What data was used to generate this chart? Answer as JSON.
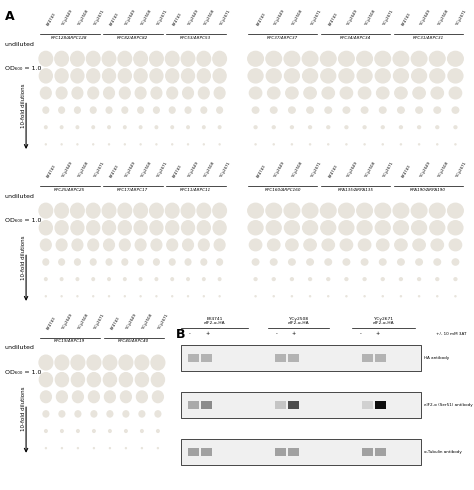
{
  "fig_width": 4.74,
  "fig_height": 4.9,
  "bg_plate_color": "#8899bb",
  "colony_color": "#e8e4dc",
  "panel_A_label": "A",
  "panel_B_label": "B",
  "left_labels": [
    "undiluted",
    "OD₆₀₀ = 1.0",
    "10-fold dilutions"
  ],
  "plate_groups": [
    {
      "label": "RPC128/ΔRPC128",
      "strains": [
        "BY4743",
        "YCy2649",
        "YCy2508",
        "YCy2671"
      ],
      "row": 0,
      "col": 0
    },
    {
      "label": "RPC82/ΔRPC82",
      "strains": [
        "BY4743",
        "YCy2649",
        "YCy2508",
        "YCy2671"
      ],
      "row": 0,
      "col": 1
    },
    {
      "label": "RPC53/ΔRPC53",
      "strains": [
        "BY4743",
        "YCy2649",
        "YCy2508"
      ],
      "row": 0,
      "col": 2
    },
    {
      "label": "RPC37/ΔRPC37",
      "strains": [
        "BY4743",
        "YCy2649",
        "YCy2508",
        "YCy2671"
      ],
      "row": 0,
      "col": 3
    },
    {
      "label": "RPC34/ΔRPC34",
      "strains": [
        "BY4743",
        "YCy2649",
        "YCy2508",
        "YCy2671"
      ],
      "row": 0,
      "col": 4
    },
    {
      "label": "RPC31/ΔRPC31",
      "strains": [
        "BY4743",
        "YCy2649",
        "YCy2508",
        "YCy2671"
      ],
      "row": 0,
      "col": 5
    },
    {
      "label": "RPC25/ΔRPC25",
      "strains": [
        "BY4743",
        "YCy2649",
        "YCy2508",
        "YCy2671"
      ],
      "row": 1,
      "col": 0
    },
    {
      "label": "RPC17/ΔRPC17",
      "strains": [
        "BY4743",
        "YCy2649",
        "YCy2508",
        "YCy2671"
      ],
      "row": 1,
      "col": 1
    },
    {
      "label": "RPC11/ΔRPC11",
      "strains": [
        "BY4743",
        "YCy2649",
        "YCy2508",
        "YCy2671"
      ],
      "row": 1,
      "col": 2
    },
    {
      "label": "RPC160/ΔRPC160",
      "strains": [
        "BY4743",
        "YCy2649",
        "YCy2508",
        "YCy2671"
      ],
      "row": 1,
      "col": 3
    },
    {
      "label": "RPA135/ΔRPA135",
      "strains": [
        "BY4743",
        "YCy2649",
        "YCy2508",
        "YCy2671"
      ],
      "row": 1,
      "col": 4
    },
    {
      "label": "RPA190/ΔRPA190",
      "strains": [
        "BY4743",
        "YCy2649",
        "YCy2508",
        "YCy2671"
      ],
      "row": 1,
      "col": 5
    },
    {
      "label": "RPC19/ΔRPC19",
      "strains": [
        "BY4743",
        "YCy2649",
        "YCy2508",
        "YCy2671"
      ],
      "row": 2,
      "col": 0
    },
    {
      "label": "RPC40/ΔRPC40",
      "strains": [
        "BY4743",
        "YCy2649",
        "YCy2508",
        "YCy2671"
      ],
      "row": 2,
      "col": 1
    }
  ],
  "western_title": "B",
  "western_strains": [
    "BY4741\nelF2-α-HA",
    "YCy2508\nelF2-α-HA",
    "YCy2671\nelF2-α-HA"
  ],
  "western_conditions": [
    "-",
    "+",
    "-",
    "+",
    "-",
    "+"
  ],
  "western_labels": [
    "+/- 10 mM 3AT",
    "HA antibody",
    "elF2-α (Ser51) antibody",
    "α-Tubulin antibody"
  ]
}
